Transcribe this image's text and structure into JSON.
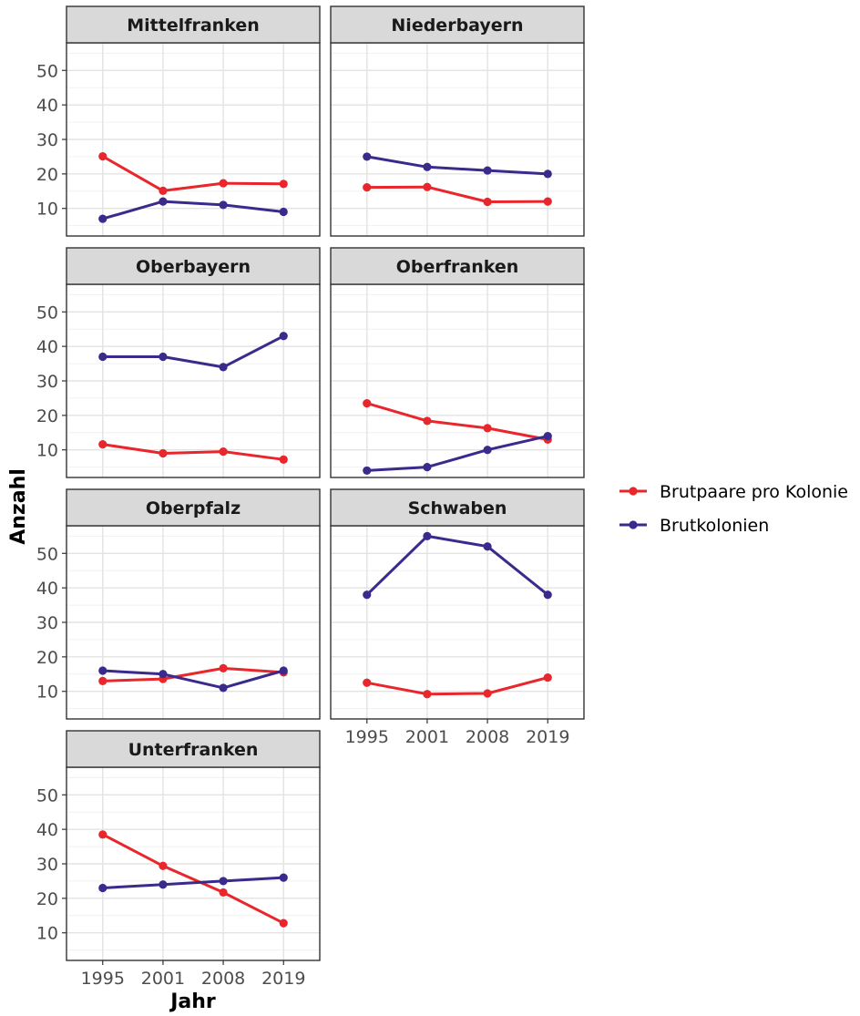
{
  "chart_data": {
    "type": "line",
    "xlabel": "Jahr",
    "ylabel": "Anzahl",
    "x": [
      1995,
      2001,
      2008,
      2019
    ],
    "yticks": [
      10,
      20,
      30,
      40,
      50
    ],
    "ylim": [
      2,
      58
    ],
    "grid": true,
    "legend_position": "right",
    "legend": [
      {
        "name": "Brutpaare pro Kolonie",
        "color": "#e8262b"
      },
      {
        "name": "Brutkolonien",
        "color": "#3a2a8c"
      }
    ],
    "panels": [
      {
        "title": "Mittelfranken",
        "series": [
          {
            "name": "Brutpaare pro Kolonie",
            "values": [
              25.1,
              15.1,
              17.3,
              17.1
            ]
          },
          {
            "name": "Brutkolonien",
            "values": [
              7,
              12,
              11,
              9
            ]
          }
        ]
      },
      {
        "title": "Niederbayern",
        "series": [
          {
            "name": "Brutpaare pro Kolonie",
            "values": [
              16.1,
              16.2,
              11.9,
              12.0
            ]
          },
          {
            "name": "Brutkolonien",
            "values": [
              25,
              22,
              21,
              20
            ]
          }
        ]
      },
      {
        "title": "Oberbayern",
        "series": [
          {
            "name": "Brutpaare pro Kolonie",
            "values": [
              11.6,
              9.0,
              9.5,
              7.2
            ]
          },
          {
            "name": "Brutkolonien",
            "values": [
              37,
              37,
              34,
              43
            ]
          }
        ]
      },
      {
        "title": "Oberfranken",
        "series": [
          {
            "name": "Brutpaare pro Kolonie",
            "values": [
              23.5,
              18.4,
              16.3,
              13.0
            ]
          },
          {
            "name": "Brutkolonien",
            "values": [
              4,
              5,
              10,
              14
            ]
          }
        ]
      },
      {
        "title": "Oberpfalz",
        "series": [
          {
            "name": "Brutpaare pro Kolonie",
            "values": [
              13.0,
              13.6,
              16.7,
              15.5
            ]
          },
          {
            "name": "Brutkolonien",
            "values": [
              16,
              15,
              11,
              16
            ]
          }
        ]
      },
      {
        "title": "Schwaben",
        "series": [
          {
            "name": "Brutpaare pro Kolonie",
            "values": [
              12.5,
              9.2,
              9.4,
              14.0
            ]
          },
          {
            "name": "Brutkolonien",
            "values": [
              38,
              55,
              52,
              38
            ]
          }
        ]
      },
      {
        "title": "Unterfranken",
        "series": [
          {
            "name": "Brutpaare pro Kolonie",
            "values": [
              38.5,
              29.4,
              21.7,
              12.8
            ]
          },
          {
            "name": "Brutkolonien",
            "values": [
              23,
              24,
              25,
              26
            ]
          }
        ]
      }
    ]
  }
}
